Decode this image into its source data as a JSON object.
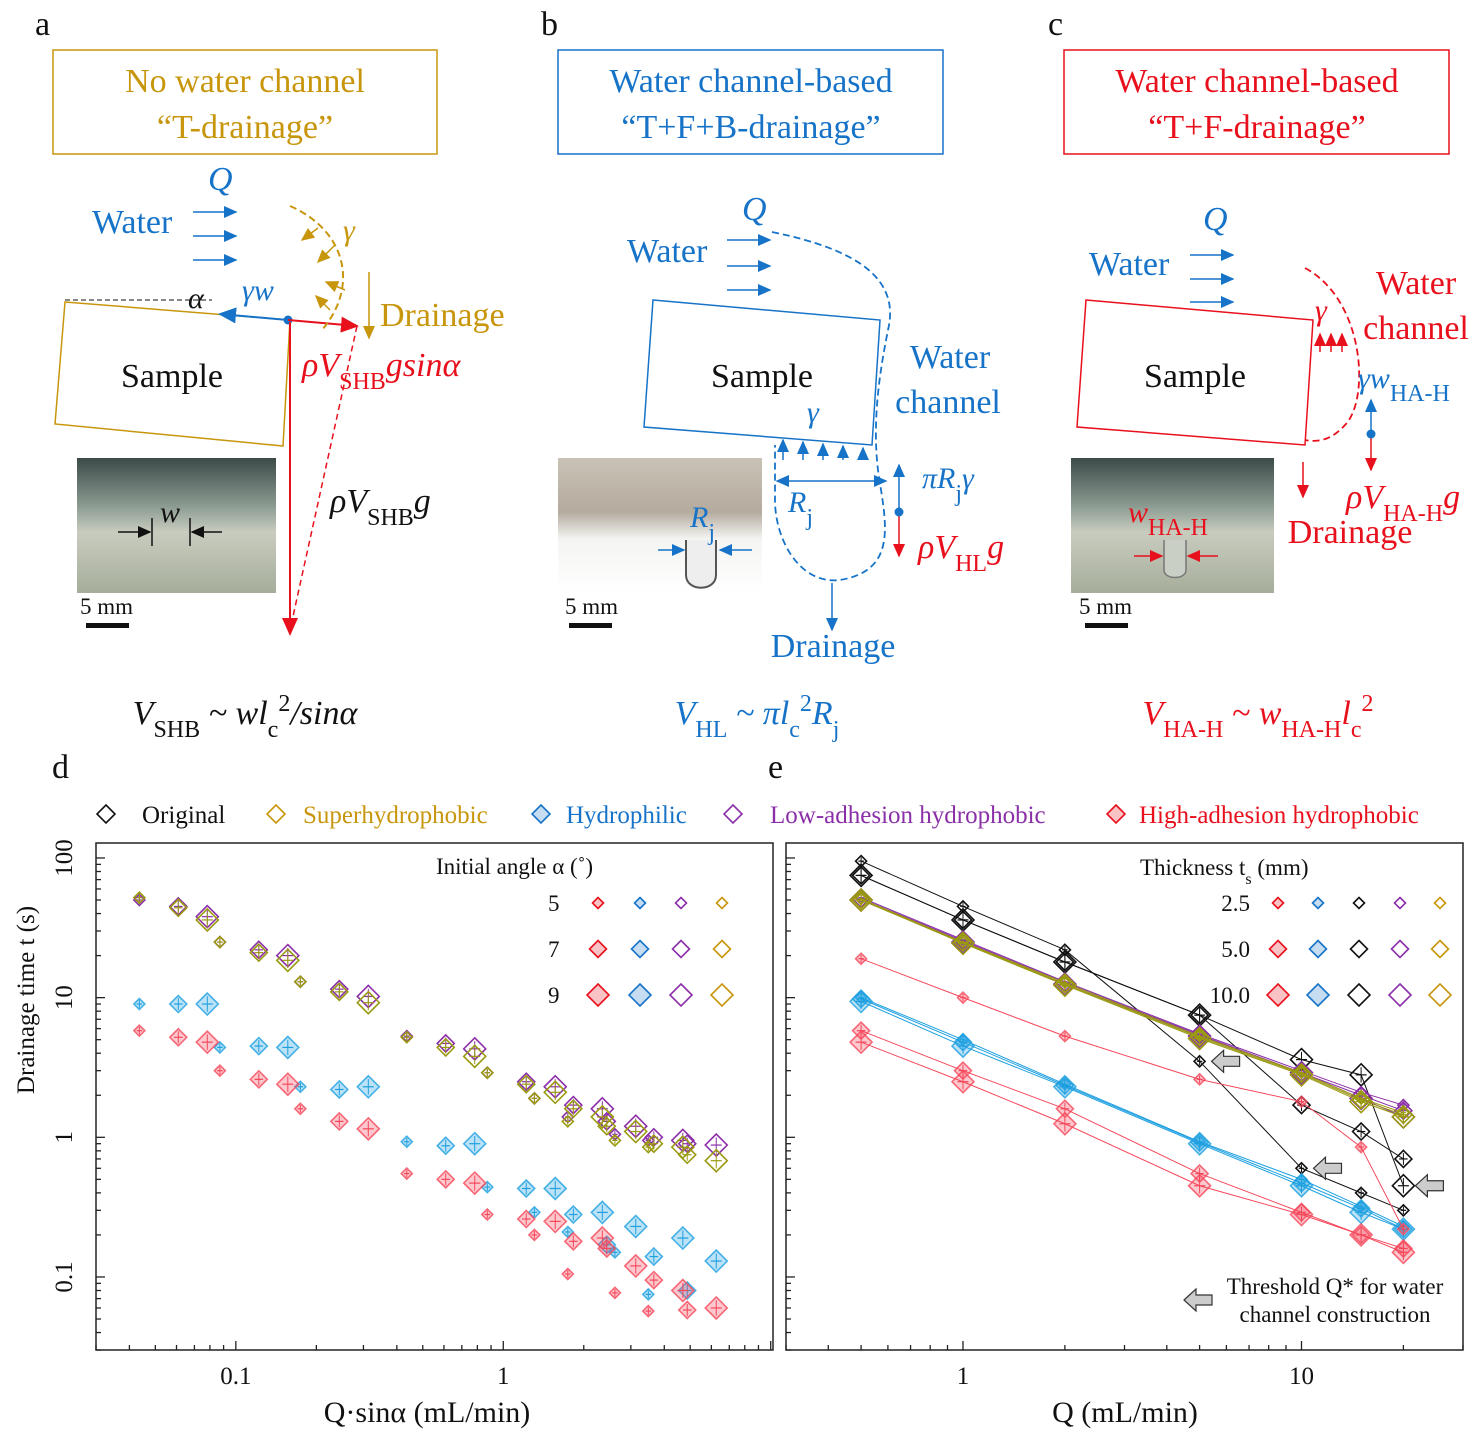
{
  "colors": {
    "gold": "#C8960C",
    "blue": "#1673C8",
    "red": "#E8101C",
    "purple": "#8B2FA8",
    "black": "#111111",
    "lightblue": "#1EA0E0",
    "pink": "#F5475A",
    "olive": "#9A9A10"
  },
  "panel_a": {
    "letter": "a",
    "title_line1": "No water channel",
    "title_line2": "“T-drainage”",
    "q": "Q",
    "water": "Water",
    "gamma": "γ",
    "gamma_w": "γw",
    "alpha": "α",
    "drainage": "Drainage",
    "sample": "Sample",
    "w": "w",
    "scale": "5 mm",
    "force_sin": [
      {
        "t": "ρV",
        "s": ""
      },
      {
        "t": "SHB",
        "s": "sub"
      },
      {
        "t": "gsinα",
        "s": ""
      }
    ],
    "force_g": [
      {
        "t": "ρV",
        "s": ""
      },
      {
        "t": "SHB",
        "s": "sub"
      },
      {
        "t": "g",
        "s": ""
      }
    ],
    "equation": [
      {
        "t": "V",
        "s": ""
      },
      {
        "t": "SHB",
        "s": "sub"
      },
      {
        "t": " ~ wl",
        "s": ""
      },
      {
        "t": "c",
        "s": "sub"
      },
      {
        "t": "2",
        "s": "sup"
      },
      {
        "t": "/sinα",
        "s": ""
      }
    ]
  },
  "panel_b": {
    "letter": "b",
    "title_line1": "Water channel-based",
    "title_line2": "“T+F+B-drainage”",
    "q": "Q",
    "water": "Water",
    "sample": "Sample",
    "gamma": "γ",
    "channel_line1": "Water",
    "channel_line2": "channel",
    "drainage": "Drainage",
    "scale": "5 mm",
    "rj_photo": [
      {
        "t": "R",
        "s": ""
      },
      {
        "t": "j",
        "s": "sub"
      }
    ],
    "rj": [
      {
        "t": "R",
        "s": ""
      },
      {
        "t": "j",
        "s": "sub"
      }
    ],
    "force_up": [
      {
        "t": "πR",
        "s": ""
      },
      {
        "t": "j",
        "s": "sub"
      },
      {
        "t": "γ",
        "s": ""
      }
    ],
    "force_down": [
      {
        "t": "ρV",
        "s": ""
      },
      {
        "t": "HL",
        "s": "sub"
      },
      {
        "t": "g",
        "s": ""
      }
    ],
    "equation": [
      {
        "t": "V",
        "s": ""
      },
      {
        "t": "HL",
        "s": "sub"
      },
      {
        "t": " ~ πl",
        "s": ""
      },
      {
        "t": "c",
        "s": "sub"
      },
      {
        "t": "2",
        "s": "sup"
      },
      {
        "t": "R",
        "s": ""
      },
      {
        "t": "j",
        "s": "sub"
      }
    ]
  },
  "panel_c": {
    "letter": "c",
    "title_line1": "Water channel-based",
    "title_line2": "“T+F-drainage”",
    "q": "Q",
    "water": "Water",
    "sample": "Sample",
    "gamma": "γ",
    "channel_line1": "Water",
    "channel_line2": "channel",
    "drainage": "Drainage",
    "scale": "5 mm",
    "force_up": [
      {
        "t": "γw",
        "s": ""
      },
      {
        "t": "HA-H",
        "s": "sub"
      }
    ],
    "force_down": [
      {
        "t": "ρV",
        "s": ""
      },
      {
        "t": "HA-H",
        "s": "sub"
      },
      {
        "t": "g",
        "s": ""
      }
    ],
    "w_label": [
      {
        "t": "w",
        "s": ""
      },
      {
        "t": "HA-H",
        "s": "sub"
      }
    ],
    "equation": [
      {
        "t": "V",
        "s": ""
      },
      {
        "t": "HA-H",
        "s": "sub"
      },
      {
        "t": " ~ w",
        "s": ""
      },
      {
        "t": "HA-H",
        "s": "sub"
      },
      {
        "t": "l",
        "s": ""
      },
      {
        "t": "c",
        "s": "sub"
      },
      {
        "t": "2",
        "s": "sup"
      }
    ]
  },
  "legend": {
    "items": [
      {
        "label": "Original",
        "color": "#111111",
        "filled": false
      },
      {
        "label": "Superhydrophobic",
        "color": "#C8960C",
        "filled": false
      },
      {
        "label": "Hydrophilic",
        "color": "#1673C8",
        "filled": true
      },
      {
        "label": "Low-adhesion hydrophobic",
        "color": "#8B2FA8",
        "filled": false
      },
      {
        "label": "High-adhesion hydrophobic",
        "color": "#E8101C",
        "filled": true
      }
    ]
  },
  "chart_data": [
    {
      "id": "d",
      "letter": "d",
      "type": "scatter",
      "xlabel": "Q·sinα (mL/min)",
      "ylabel": "Drainage time t (s)",
      "xscale": "log",
      "yscale": "log",
      "xlim": [
        0.03,
        10.2
      ],
      "ylim": [
        0.03,
        128
      ],
      "xticks": [
        {
          "v": 0.1,
          "label": "0.1"
        },
        {
          "v": 1,
          "label": "1"
        }
      ],
      "yticks": [
        {
          "v": 100,
          "label": "100"
        },
        {
          "v": 10,
          "label": "10"
        },
        {
          "v": 1,
          "label": "1"
        },
        {
          "v": 0.1,
          "label": "0.1"
        }
      ],
      "legend_title": "Initial angle α (˚)",
      "legend_rows": [
        "5",
        "7",
        "9"
      ],
      "legend_colors": [
        "#E8101C",
        "#1673C8",
        "#8B2FA8",
        "#C8960C"
      ],
      "Q": [
        0.5,
        1,
        2,
        5,
        10,
        15,
        20,
        30,
        40
      ],
      "angles": [
        5,
        7,
        9
      ],
      "series": [
        {
          "name": "Low-adhesion hydrophobic",
          "color": "#8B2FA8",
          "fill": false,
          "t": [
            [
              50,
              25,
              13,
              5.3,
              2.9,
              1.9,
              1.4,
              1.05,
              0.95
            ],
            [
              45,
              22,
              11.5,
              4.7,
              2.5,
              1.7,
              1.3,
              1.0,
              0.9
            ],
            [
              38,
              20,
              10.2,
              4.3,
              2.3,
              1.6,
              1.2,
              0.95,
              0.88
            ]
          ]
        },
        {
          "name": "Superhydrophobic",
          "color": "#9A9A10",
          "fill": false,
          "t": [
            [
              52,
              25,
              13,
              5.2,
              2.9,
              1.9,
              1.3,
              0.95,
              0.85
            ],
            [
              44,
              21,
              11,
              4.4,
              2.4,
              1.6,
              1.2,
              0.9,
              0.75
            ],
            [
              36,
              18.5,
              9.2,
              3.8,
              2.1,
              1.4,
              1.1,
              0.85,
              0.68
            ]
          ]
        },
        {
          "name": "Hydrophilic",
          "color": "#1EA0E0",
          "fill": true,
          "t": [
            [
              9,
              4.4,
              2.3,
              0.93,
              0.44,
              0.29,
              0.21,
              0.15,
              0.075
            ],
            [
              9,
              4.5,
              2.2,
              0.87,
              0.43,
              0.28,
              0.17,
              0.14,
              0.08
            ],
            [
              9,
              4.4,
              2.3,
              0.9,
              0.43,
              0.29,
              0.23,
              0.19,
              0.13
            ]
          ]
        },
        {
          "name": "High-adhesion hydrophobic",
          "color": "#F5475A",
          "fill": true,
          "t": [
            [
              5.8,
              3.0,
              1.6,
              0.55,
              0.28,
              0.2,
              0.105,
              0.077,
              0.057
            ],
            [
              5.2,
              2.6,
              1.3,
              0.5,
              0.26,
              0.18,
              0.16,
              0.095,
              0.058
            ],
            [
              4.8,
              2.4,
              1.15,
              0.47,
              0.25,
              0.19,
              0.12,
              0.08,
              0.06
            ]
          ]
        }
      ]
    },
    {
      "id": "e",
      "letter": "e",
      "type": "line",
      "xlabel": "Q (mL/min)",
      "ylabel": "Drainage time t (s)",
      "xscale": "log",
      "yscale": "log",
      "xlim": [
        0.3,
        30
      ],
      "ylim": [
        0.03,
        128
      ],
      "xticks": [
        {
          "v": 1,
          "label": "1"
        },
        {
          "v": 10,
          "label": "10"
        }
      ],
      "yticks": [
        {
          "v": 100,
          "label": "100"
        },
        {
          "v": 10,
          "label": "10"
        },
        {
          "v": 1,
          "label": "1"
        },
        {
          "v": 0.1,
          "label": "0.1"
        }
      ],
      "legend_title": "Thickness t",
      "legend_title_sub": "s",
      "legend_title_unit": " (mm)",
      "legend_rows": [
        "2.5",
        "5.0",
        "10.0"
      ],
      "legend_colors": [
        "#E8101C",
        "#1673C8",
        "#111111",
        "#8B2FA8",
        "#C8960C"
      ],
      "threshold_line1": "Threshold Q* for water",
      "threshold_line2": "channel construction",
      "Q": [
        0.5,
        1,
        2,
        5,
        10,
        15,
        20
      ],
      "thicknesses": [
        2.5,
        5.0,
        10.0
      ],
      "series": [
        {
          "name": "Original",
          "color": "#111111",
          "fill": false,
          "t": [
            [
              95,
              45,
              22,
              3.5,
              0.6,
              0.4,
              0.3
            ],
            [
              75,
              36,
              18,
              7.5,
              1.7,
              1.1,
              0.7
            ],
            [
              75,
              36,
              18,
              7.5,
              3.6,
              2.8,
              0.45
            ]
          ]
        },
        {
          "name": "Low-adhesion hydrophobic",
          "color": "#8B2FA8",
          "fill": false,
          "t": [
            [
              52,
              26,
              13,
              5.5,
              3.0,
              2.1,
              1.7
            ],
            [
              51,
              25.5,
              12.8,
              5.4,
              2.9,
              2.0,
              1.55
            ],
            [
              50,
              25,
              12.5,
              5.3,
              2.9,
              1.9,
              1.4
            ]
          ]
        },
        {
          "name": "Superhydrophobic",
          "color": "#9A9A10",
          "fill": false,
          "t": [
            [
              51,
              25,
              12.8,
              5.3,
              2.9,
              1.9,
              1.5
            ],
            [
              50,
              24.8,
              12.5,
              5.2,
              2.85,
              1.85,
              1.45
            ],
            [
              50,
              24.5,
              12.3,
              5.1,
              2.8,
              1.8,
              1.4
            ]
          ]
        },
        {
          "name": "Hydrophilic",
          "color": "#1EA0E0",
          "fill": true,
          "t": [
            [
              10,
              5.0,
              2.4,
              0.93,
              0.5,
              0.32,
              0.23
            ],
            [
              9.8,
              4.8,
              2.35,
              0.92,
              0.47,
              0.31,
              0.22
            ],
            [
              9.4,
              4.5,
              2.3,
              0.9,
              0.45,
              0.29,
              0.22
            ]
          ]
        },
        {
          "name": "High-adhesion hydrophobic",
          "color": "#F5475A",
          "fill": true,
          "t": [
            [
              19,
              10,
              5.3,
              2.6,
              1.8,
              0.85,
              0.22
            ],
            [
              5.8,
              3.0,
              1.6,
              0.55,
              0.29,
              0.2,
              0.16
            ],
            [
              4.8,
              2.5,
              1.25,
              0.45,
              0.28,
              0.2,
              0.15
            ]
          ]
        }
      ],
      "threshold_points": [
        {
          "Q": 5,
          "t": 3.5
        },
        {
          "Q": 10,
          "t": 0.6
        },
        {
          "Q": 20,
          "t": 0.45
        }
      ]
    }
  ]
}
